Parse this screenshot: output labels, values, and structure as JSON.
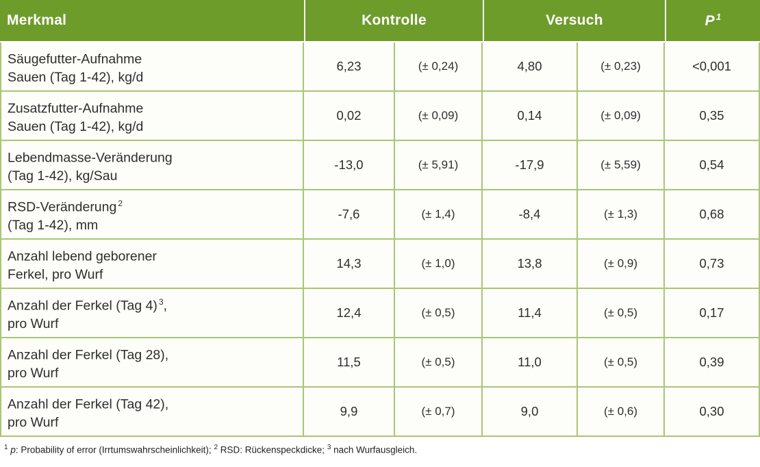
{
  "colors": {
    "header_bg": "#6e9c2b",
    "header_text": "#ffffff",
    "grid_border": "#a9c674",
    "cell_bg": "#fdfdf9",
    "body_text": "#2d2d2d"
  },
  "chart_data": {
    "type": "table",
    "header": {
      "merkmal": "Merkmal",
      "kontrolle": "Kontrolle",
      "versuch": "Versuch",
      "p_label": "P",
      "p_sup": "1"
    },
    "rows": [
      {
        "label1_pre": "Säugefutter-Aufnahme",
        "label1_sup": "",
        "label1_post": "",
        "label2": "Sauen (Tag 1-42), kg/d",
        "kontrolle_mean": "6,23",
        "kontrolle_sd": "(± 0,24)",
        "versuch_mean": "4,80",
        "versuch_sd": "(± 0,23)",
        "p_value": "<0,001"
      },
      {
        "label1_pre": "Zusatzfutter-Aufnahme",
        "label1_sup": "",
        "label1_post": "",
        "label2": "Sauen (Tag 1-42), kg/d",
        "kontrolle_mean": "0,02",
        "kontrolle_sd": "(± 0,09)",
        "versuch_mean": "0,14",
        "versuch_sd": "(± 0,09)",
        "p_value": "0,35"
      },
      {
        "label1_pre": "Lebendmasse-Veränderung",
        "label1_sup": "",
        "label1_post": "",
        "label2": "(Tag 1-42), kg/Sau",
        "kontrolle_mean": "-13,0",
        "kontrolle_sd": "(± 5,91)",
        "versuch_mean": "-17,9",
        "versuch_sd": "(± 5,59)",
        "p_value": "0,54"
      },
      {
        "label1_pre": "RSD-Veränderung",
        "label1_sup": "2",
        "label1_post": "",
        "label2": "(Tag 1-42), mm",
        "kontrolle_mean": "-7,6",
        "kontrolle_sd": "(± 1,4)",
        "versuch_mean": "-8,4",
        "versuch_sd": "(± 1,3)",
        "p_value": "0,68"
      },
      {
        "label1_pre": "Anzahl lebend geborener",
        "label1_sup": "",
        "label1_post": "",
        "label2": "Ferkel, pro Wurf",
        "kontrolle_mean": "14,3",
        "kontrolle_sd": "(± 1,0)",
        "versuch_mean": "13,8",
        "versuch_sd": "(± 0,9)",
        "p_value": "0,73"
      },
      {
        "label1_pre": "Anzahl der Ferkel (Tag 4)",
        "label1_sup": "3",
        "label1_post": ",",
        "label2": "pro Wurf",
        "kontrolle_mean": "12,4",
        "kontrolle_sd": "(± 0,5)",
        "versuch_mean": "11,4",
        "versuch_sd": "(± 0,5)",
        "p_value": "0,17"
      },
      {
        "label1_pre": "Anzahl der Ferkel (Tag 28),",
        "label1_sup": "",
        "label1_post": "",
        "label2": "pro Wurf",
        "kontrolle_mean": "11,5",
        "kontrolle_sd": "(± 0,5)",
        "versuch_mean": "11,0",
        "versuch_sd": "(± 0,5)",
        "p_value": "0,39"
      },
      {
        "label1_pre": "Anzahl der Ferkel (Tag 42),",
        "label1_sup": "",
        "label1_post": "",
        "label2": "pro Wurf",
        "kontrolle_mean": "9,9",
        "kontrolle_sd": "(± 0,7)",
        "versuch_mean": "9,0",
        "versuch_sd": "(± 0,6)",
        "p_value": "0,30"
      }
    ],
    "footnote": {
      "sup1": "1",
      "p_italic": "p",
      "text1": ": Probability of error (Irrtumswahrscheinlichkeit); ",
      "sup2": "2",
      "text2": " RSD: Rückenspeckdicke; ",
      "sup3": "3",
      "text3": " nach Wurfausgleich."
    }
  }
}
